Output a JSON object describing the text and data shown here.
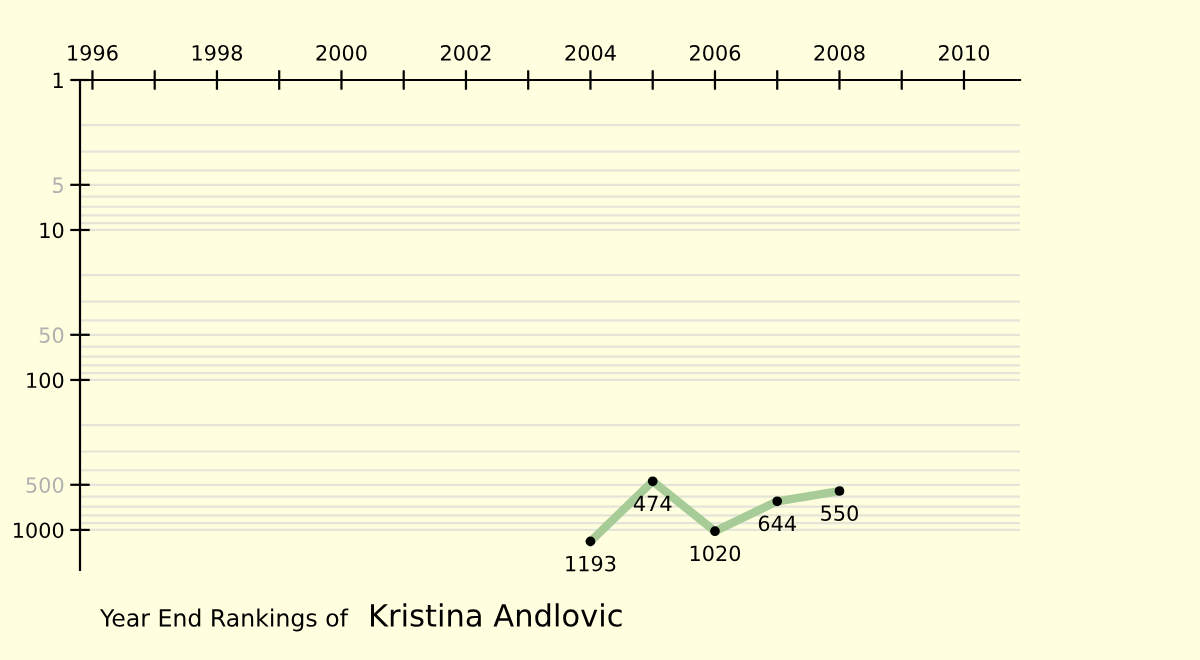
{
  "chart_data": {
    "type": "line",
    "title": "Year End Rankings of",
    "subtitle": "Kristina Andlovic",
    "x": [
      2004,
      2005,
      2006,
      2007,
      2008
    ],
    "series": [
      {
        "color": "#a8cc98",
        "values": [
          1193,
          474,
          1020,
          644,
          550
        ]
      }
    ],
    "data_labels": true,
    "marker": "circle",
    "line_style": "solid",
    "log": "y",
    "xlim": [
      1995.8,
      2010.9
    ],
    "xticks": [
      1996,
      {
        "value": 1997,
        "label": null
      },
      1998,
      {
        "value": 1999,
        "label": null
      },
      2000,
      {
        "value": 2001,
        "label": null
      },
      2002,
      {
        "value": 2003,
        "label": null
      },
      2004,
      {
        "value": 2005,
        "label": null
      },
      2006,
      {
        "value": 2007,
        "label": null
      },
      2008,
      {
        "value": 2009,
        "label": null
      },
      2010
    ],
    "ylim": [
      1850,
      1
    ],
    "yticks": [
      1,
      5,
      10,
      50,
      100,
      500,
      1000
    ],
    "grid": "y"
  }
}
